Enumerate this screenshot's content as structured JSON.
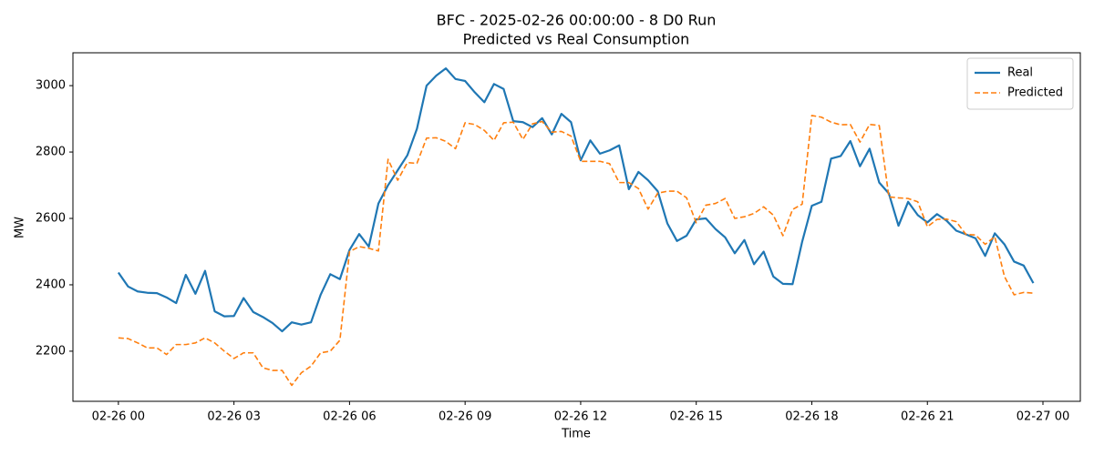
{
  "chart_data": {
    "type": "line",
    "title": "BFC - 2025-02-26 00:00:00 - 8 D0 Run",
    "subtitle": "Predicted vs Real Consumption",
    "x_label": "Time",
    "y_label": "MW",
    "x": [
      0,
      0.25,
      0.5,
      0.75,
      1,
      1.25,
      1.5,
      1.75,
      2,
      2.25,
      2.5,
      2.75,
      3,
      3.25,
      3.5,
      3.75,
      4,
      4.25,
      4.5,
      4.75,
      5,
      5.25,
      5.5,
      5.75,
      6,
      6.25,
      6.5,
      6.75,
      7,
      7.25,
      7.5,
      7.75,
      8,
      8.25,
      8.5,
      8.75,
      9,
      9.25,
      9.5,
      9.75,
      10,
      10.25,
      10.5,
      10.75,
      11,
      11.25,
      11.5,
      11.75,
      12,
      12.25,
      12.5,
      12.75,
      13,
      13.25,
      13.5,
      13.75,
      14,
      14.25,
      14.5,
      14.75,
      15,
      15.25,
      15.5,
      15.75,
      16,
      16.25,
      16.5,
      16.75,
      17,
      17.25,
      17.5,
      17.75,
      18,
      18.25,
      18.5,
      18.75,
      19,
      19.25,
      19.5,
      19.75,
      20,
      20.25,
      20.5,
      20.75,
      21,
      21.25,
      21.5,
      21.75,
      22,
      22.25,
      22.5,
      22.75,
      23,
      23.25,
      23.5,
      23.75
    ],
    "series": [
      {
        "name": "Real",
        "color": "#1f77b4",
        "dash": false,
        "values": [
          2437,
          2395,
          2380,
          2376,
          2375,
          2362,
          2345,
          2430,
          2373,
          2442,
          2320,
          2305,
          2306,
          2360,
          2318,
          2303,
          2285,
          2260,
          2287,
          2280,
          2287,
          2370,
          2432,
          2417,
          2505,
          2553,
          2515,
          2645,
          2700,
          2745,
          2790,
          2870,
          3000,
          3030,
          3052,
          3020,
          3014,
          2980,
          2950,
          3005,
          2990,
          2893,
          2890,
          2875,
          2902,
          2853,
          2915,
          2890,
          2775,
          2835,
          2795,
          2805,
          2820,
          2688,
          2740,
          2715,
          2682,
          2585,
          2532,
          2548,
          2597,
          2600,
          2568,
          2543,
          2495,
          2535,
          2462,
          2500,
          2425,
          2403,
          2402,
          2530,
          2638,
          2650,
          2780,
          2788,
          2833,
          2757,
          2810,
          2708,
          2675,
          2578,
          2650,
          2610,
          2588,
          2613,
          2593,
          2563,
          2552,
          2540,
          2487,
          2555,
          2522,
          2470,
          2458,
          2405
        ]
      },
      {
        "name": "Predicted",
        "color": "#ff7f0e",
        "dash": true,
        "values": [
          2240,
          2238,
          2225,
          2210,
          2210,
          2190,
          2220,
          2220,
          2225,
          2240,
          2225,
          2200,
          2178,
          2195,
          2195,
          2150,
          2142,
          2142,
          2097,
          2135,
          2155,
          2195,
          2200,
          2233,
          2500,
          2515,
          2510,
          2502,
          2778,
          2715,
          2768,
          2766,
          2842,
          2843,
          2832,
          2810,
          2888,
          2883,
          2865,
          2835,
          2888,
          2890,
          2838,
          2885,
          2892,
          2860,
          2862,
          2848,
          2772,
          2772,
          2772,
          2765,
          2708,
          2708,
          2690,
          2628,
          2676,
          2682,
          2682,
          2662,
          2587,
          2640,
          2645,
          2660,
          2600,
          2605,
          2615,
          2635,
          2610,
          2548,
          2627,
          2643,
          2910,
          2905,
          2890,
          2882,
          2883,
          2830,
          2883,
          2880,
          2665,
          2662,
          2660,
          2650,
          2575,
          2597,
          2598,
          2590,
          2552,
          2550,
          2522,
          2545,
          2425,
          2370,
          2377,
          2375
        ]
      }
    ],
    "xlim": [
      -1.18,
      24.97
    ],
    "xticks": [
      {
        "value": 0,
        "label": "02-26 00"
      },
      {
        "value": 3,
        "label": "02-26 03"
      },
      {
        "value": 6,
        "label": "02-26 06"
      },
      {
        "value": 9,
        "label": "02-26 09"
      },
      {
        "value": 12,
        "label": "02-26 12"
      },
      {
        "value": 15,
        "label": "02-26 15"
      },
      {
        "value": 18,
        "label": "02-26 18"
      },
      {
        "value": 21,
        "label": "02-26 21"
      },
      {
        "value": 24,
        "label": "02-27 00"
      }
    ],
    "ylim": [
      2049,
      3099
    ],
    "yticks": [
      2200,
      2400,
      2600,
      2800,
      3000
    ],
    "grid": false,
    "legend": "upper right"
  }
}
